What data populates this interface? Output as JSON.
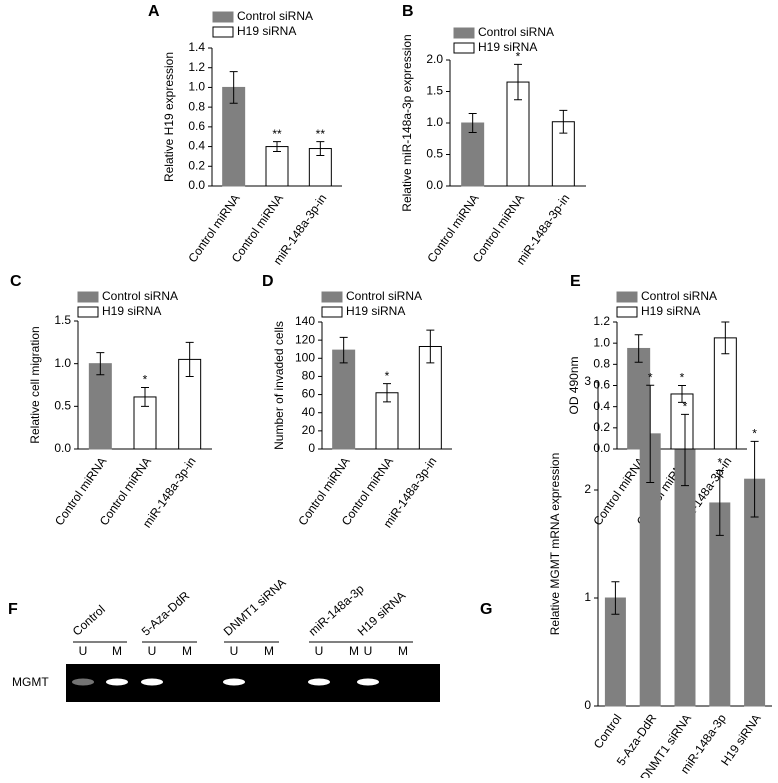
{
  "chart_data": [
    {
      "type": "bar",
      "title": "A",
      "ylabel": "Relative H19 expression",
      "legend": [
        {
          "name": "Control siRNA",
          "color": "#808080"
        },
        {
          "name": "H19 siRNA",
          "color": "#ffffff"
        }
      ],
      "categories": [
        "Control miRNA",
        "Control miRNA",
        "miR-148a-3p-in"
      ],
      "values": [
        1.0,
        0.4,
        0.38
      ],
      "errors": [
        0.16,
        0.05,
        0.07
      ],
      "bar_colors": [
        "#808080",
        "#ffffff",
        "#ffffff"
      ],
      "annotations": [
        null,
        "**",
        "**"
      ],
      "ylim": [
        0,
        1.4
      ],
      "yticks": [
        {
          "value": 0,
          "label": "0.0"
        },
        0.2,
        0.4,
        0.6,
        0.8,
        {
          "value": 1,
          "label": "1.0"
        },
        1.2,
        1.4
      ]
    },
    {
      "type": "bar",
      "title": "B",
      "ylabel": "Relative miR-148a-3p expression",
      "legend": [
        {
          "name": "Control siRNA",
          "color": "#808080"
        },
        {
          "name": "H19 siRNA",
          "color": "#ffffff"
        }
      ],
      "categories": [
        "Control miRNA",
        "Control miRNA",
        "miR-148a-3p-in"
      ],
      "values": [
        1.0,
        1.65,
        1.02
      ],
      "errors": [
        0.15,
        0.28,
        0.18
      ],
      "bar_colors": [
        "#808080",
        "#ffffff",
        "#ffffff"
      ],
      "annotations": [
        null,
        "*",
        null
      ],
      "ylim": [
        0,
        2
      ],
      "yticks": [
        {
          "value": 0,
          "label": "0.0"
        },
        0.5,
        {
          "value": 1,
          "label": "1.0"
        },
        1.5,
        {
          "value": 2,
          "label": "2.0"
        }
      ]
    },
    {
      "type": "bar",
      "title": "C",
      "ylabel": "Relative cell migration",
      "legend": [
        {
          "name": "Control siRNA",
          "color": "#808080"
        },
        {
          "name": "H19 siRNA",
          "color": "#ffffff"
        }
      ],
      "categories": [
        "Control miRNA",
        "Control miRNA",
        "miR-148a-3p-in"
      ],
      "values": [
        1.0,
        0.61,
        1.05
      ],
      "errors": [
        0.13,
        0.11,
        0.2
      ],
      "bar_colors": [
        "#808080",
        "#ffffff",
        "#ffffff"
      ],
      "annotations": [
        null,
        "*",
        null
      ],
      "ylim": [
        0,
        1.5
      ],
      "yticks": [
        {
          "value": 0,
          "label": "0.0"
        },
        0.5,
        {
          "value": 1,
          "label": "1.0"
        },
        1.5
      ]
    },
    {
      "type": "bar",
      "title": "D",
      "ylabel": "Number of invaded cells",
      "legend": [
        {
          "name": "Control siRNA",
          "color": "#808080"
        },
        {
          "name": "H19 siRNA",
          "color": "#ffffff"
        }
      ],
      "categories": [
        "Control miRNA",
        "Control miRNA",
        "miR-148a-3p-in"
      ],
      "values": [
        109,
        62,
        113
      ],
      "errors": [
        14,
        10,
        18
      ],
      "bar_colors": [
        "#808080",
        "#ffffff",
        "#ffffff"
      ],
      "annotations": [
        null,
        "*",
        null
      ],
      "ylim": [
        0,
        140
      ],
      "yticks": [
        0,
        20,
        40,
        60,
        80,
        100,
        120,
        140
      ]
    },
    {
      "type": "bar",
      "title": "E",
      "ylabel": "OD 490nm",
      "legend": [
        {
          "name": "Control siRNA",
          "color": "#808080"
        },
        {
          "name": "H19 siRNA",
          "color": "#ffffff"
        }
      ],
      "categories": [
        "Control miRNA",
        "Control miRNA",
        "miR-148a-3p-in"
      ],
      "values": [
        0.95,
        0.52,
        1.05
      ],
      "errors": [
        0.13,
        0.08,
        0.15
      ],
      "bar_colors": [
        "#808080",
        "#ffffff",
        "#ffffff"
      ],
      "annotations": [
        null,
        "*",
        null
      ],
      "ylim": [
        0,
        1.2
      ],
      "yticks": [
        {
          "value": 0,
          "label": "0.0"
        },
        0.2,
        0.4,
        0.6,
        0.8,
        {
          "value": 1,
          "label": "1.0"
        },
        1.2
      ]
    },
    {
      "type": "gel",
      "title": "F",
      "row_label": "MGMT",
      "groups": [
        "Control",
        "5-Aza-DdR",
        "DNMT1 siRNA",
        "miR-148a-3p",
        "H19 siRNA"
      ],
      "lanes": [
        "U",
        "M"
      ]
    },
    {
      "type": "bar",
      "title": "G",
      "ylabel": "Relative MGMT mRNA expression",
      "categories": [
        "Control",
        "5-Aza-DdR",
        "DNMT1 siRNA",
        "miR-148a-3p",
        "H19 siRNA"
      ],
      "values": [
        1.0,
        2.52,
        2.37,
        1.88,
        2.1
      ],
      "errors": [
        0.15,
        0.45,
        0.33,
        0.3,
        0.35
      ],
      "bar_colors": [
        "#808080",
        "#808080",
        "#808080",
        "#808080",
        "#808080"
      ],
      "annotations": [
        null,
        "*",
        "*",
        "*",
        "*"
      ],
      "ylim": [
        0,
        3
      ],
      "yticks": [
        0,
        1,
        2,
        3
      ]
    }
  ]
}
